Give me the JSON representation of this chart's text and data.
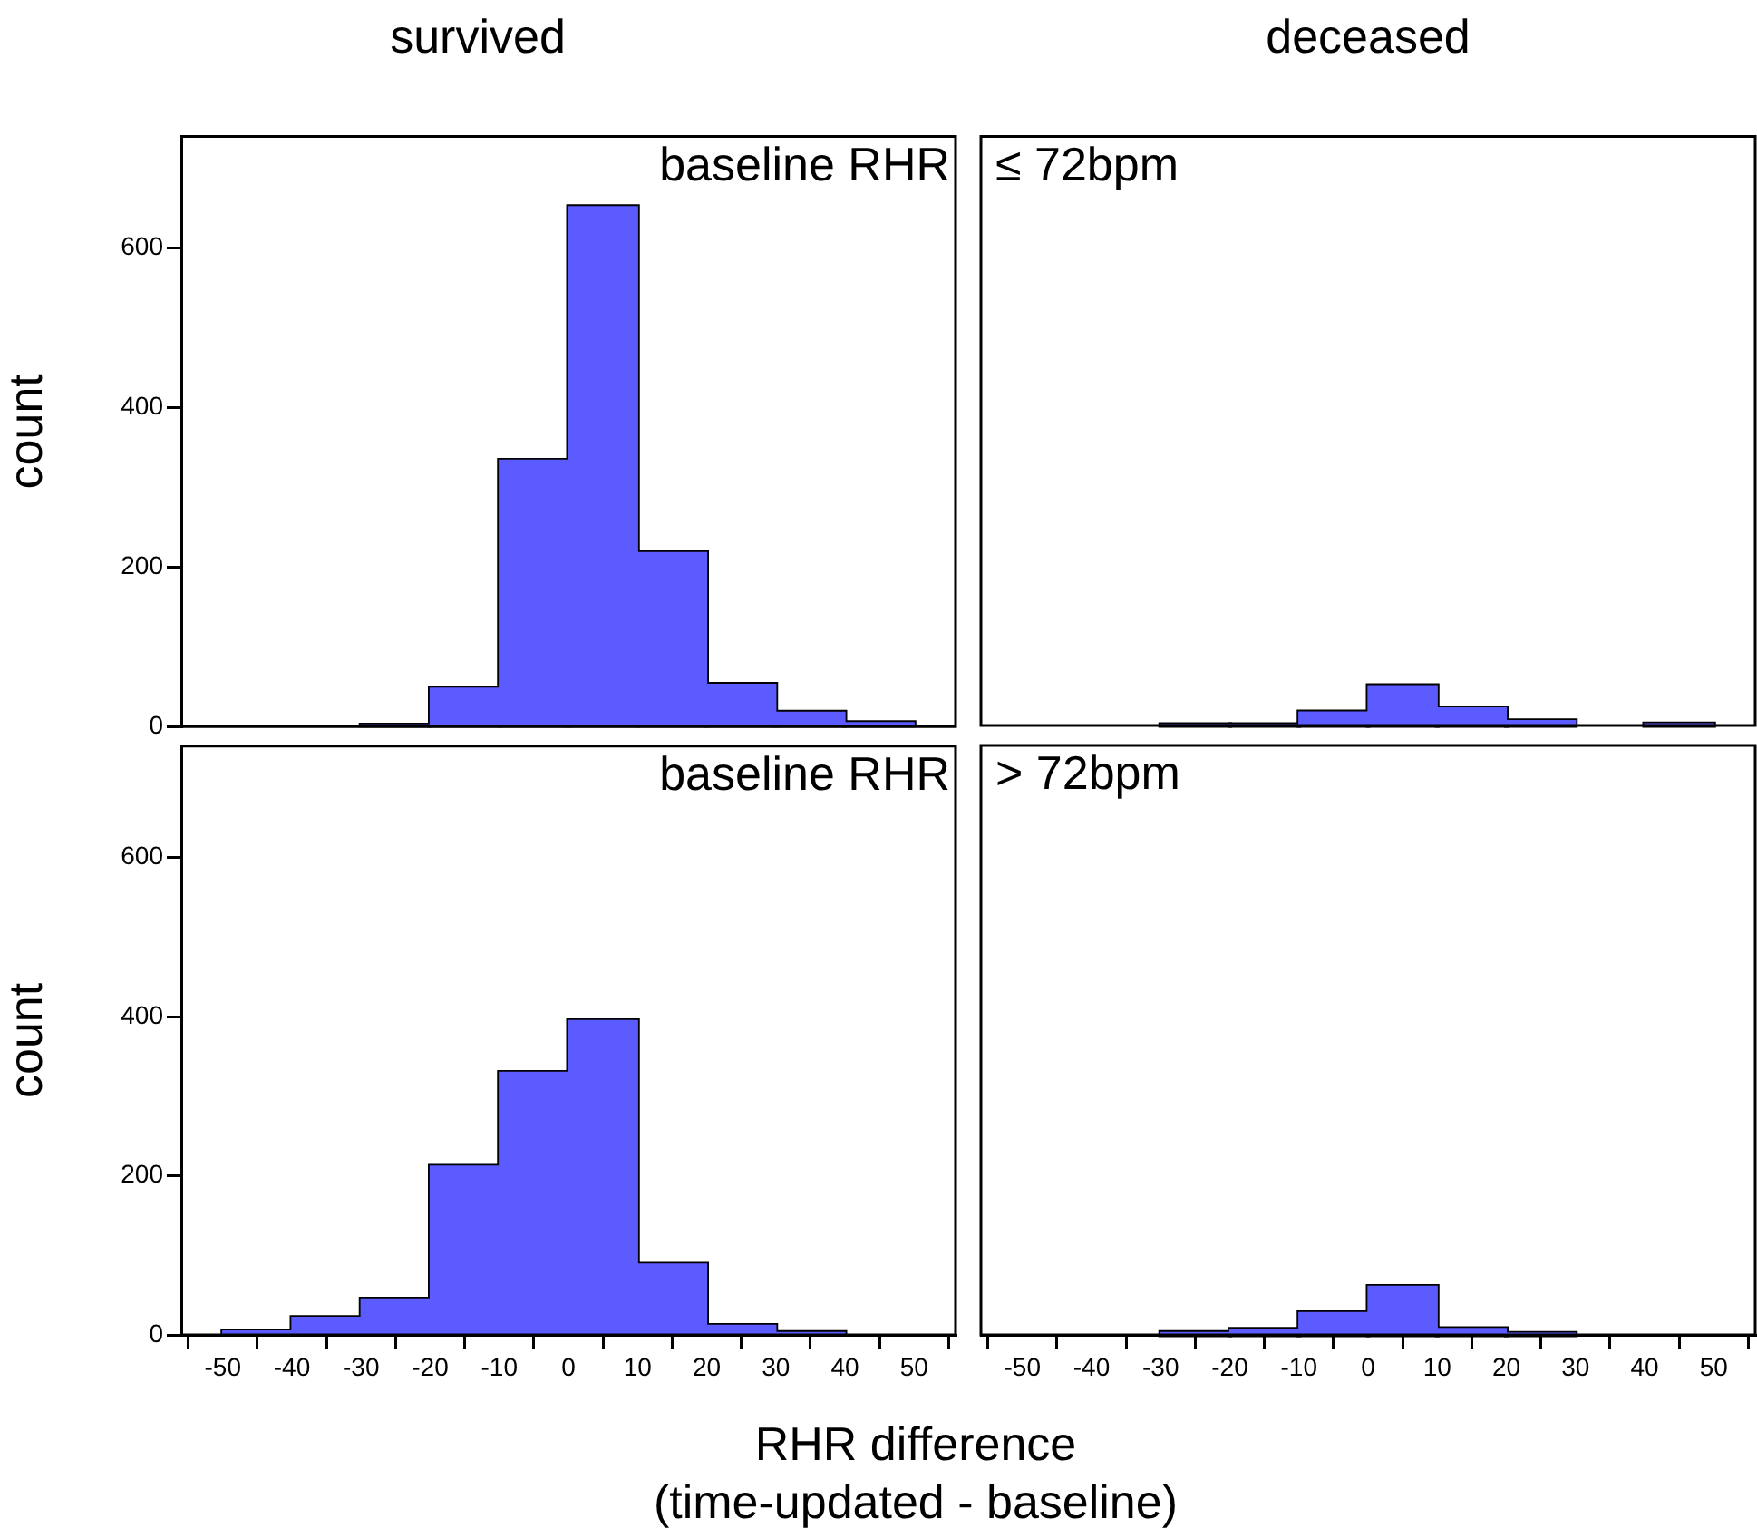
{
  "chart_data": [
    {
      "type": "histogram",
      "title": "survived",
      "ylabel": "count",
      "annotations": [
        "baseline RHR"
      ],
      "bins": [
        -50,
        -40,
        -30,
        -20,
        -10,
        0,
        10,
        20,
        30,
        40,
        50
      ],
      "values": [
        0,
        0,
        2,
        48,
        334,
        652,
        218,
        53,
        18,
        5
      ],
      "color": "#5b5bff",
      "xlim": [
        -56,
        56
      ],
      "ylim": [
        0,
        740
      ],
      "yticks": [
        0,
        200,
        400,
        600
      ],
      "xticks": [
        -50,
        -40,
        -30,
        -20,
        -10,
        0,
        10,
        20,
        30,
        40,
        50
      ],
      "tick_labels": "y"
    },
    {
      "type": "histogram",
      "title": "deceased",
      "annotations": [
        "≤ 72bpm"
      ],
      "bins": [
        -50,
        -40,
        -30,
        -20,
        -10,
        0,
        10,
        20,
        30,
        40,
        50
      ],
      "values": [
        0,
        0,
        1,
        1,
        17,
        50,
        22,
        6,
        0,
        2
      ],
      "color": "#5b5bff",
      "xlim": [
        -56,
        56
      ],
      "ylim": [
        0,
        740
      ],
      "yticks": [
        0,
        200,
        400,
        600
      ],
      "xticks": [
        -50,
        -40,
        -30,
        -20,
        -10,
        0,
        10,
        20,
        30,
        40,
        50
      ],
      "tick_labels": false
    },
    {
      "type": "histogram",
      "ylabel": "count",
      "xlabel": "RHR difference\n(time-updated - baseline)",
      "annotations": [
        "baseline RHR"
      ],
      "bins": [
        -50,
        -40,
        -30,
        -20,
        -10,
        0,
        10,
        20,
        30,
        40,
        50
      ],
      "values": [
        5,
        22,
        45,
        212,
        330,
        395,
        89,
        12,
        3,
        0
      ],
      "color": "#5b5bff",
      "xlim": [
        -56,
        56
      ],
      "ylim": [
        0,
        740
      ],
      "yticks": [
        0,
        200,
        400,
        600
      ],
      "xticks": [
        -50,
        -40,
        -30,
        -20,
        -10,
        0,
        10,
        20,
        30,
        40,
        50
      ]
    },
    {
      "type": "histogram",
      "annotations": [
        "> 72bpm"
      ],
      "bins": [
        -50,
        -40,
        -30,
        -20,
        -10,
        0,
        10,
        20,
        30,
        40,
        50
      ],
      "values": [
        0,
        0,
        3,
        7,
        28,
        61,
        8,
        2,
        0,
        0
      ],
      "color": "#5b5bff",
      "xlim": [
        -56,
        56
      ],
      "ylim": [
        0,
        740
      ],
      "yticks": [
        0,
        200,
        400,
        600
      ],
      "xticks": [
        -50,
        -40,
        -30,
        -20,
        -10,
        0,
        10,
        20,
        30,
        40,
        50
      ],
      "tick_labels": "x"
    }
  ]
}
